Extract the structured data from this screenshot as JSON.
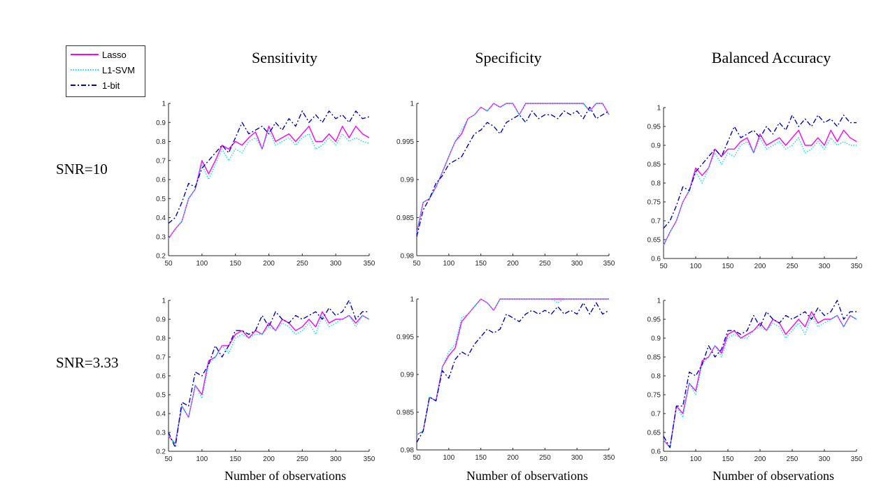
{
  "column_titles": [
    "Sensitivity",
    "Specificity",
    "Balanced Accuracy"
  ],
  "row_titles": [
    "SNR=10",
    "SNR=3.33"
  ],
  "xlabel": "Number of observations",
  "legend": {
    "items": [
      {
        "label": "Lasso",
        "color": "#ff00ff",
        "style": "solid"
      },
      {
        "label": "L1-SVM",
        "color": "#00e5ee",
        "style": "dotted"
      },
      {
        "label": "1-bit",
        "color": "#0000cc",
        "style": "dashdot"
      }
    ]
  },
  "chart_data": [
    {
      "type": "line",
      "row": "SNR=10",
      "column": "Sensitivity",
      "x": [
        50,
        60,
        70,
        80,
        90,
        100,
        110,
        120,
        130,
        140,
        150,
        160,
        170,
        180,
        190,
        200,
        210,
        220,
        230,
        240,
        250,
        260,
        270,
        280,
        290,
        300,
        310,
        320,
        330,
        340,
        350
      ],
      "xlim": [
        50,
        350
      ],
      "ylim": [
        0.2,
        1
      ],
      "xticks": [
        "50",
        "100",
        "150",
        "200",
        "250",
        "300",
        "350"
      ],
      "yticks": [
        "0.2",
        "0.3",
        "0.4",
        "0.5",
        "0.6",
        "0.7",
        "0.8",
        "0.9",
        "1"
      ],
      "series": [
        {
          "name": "Lasso",
          "values": [
            0.29,
            0.34,
            0.38,
            0.5,
            0.55,
            0.7,
            0.63,
            0.7,
            0.78,
            0.76,
            0.8,
            0.78,
            0.82,
            0.85,
            0.76,
            0.88,
            0.8,
            0.82,
            0.84,
            0.8,
            0.84,
            0.88,
            0.8,
            0.8,
            0.84,
            0.8,
            0.88,
            0.82,
            0.88,
            0.84,
            0.82
          ]
        },
        {
          "name": "L1-SVM",
          "values": [
            0.29,
            0.34,
            0.38,
            0.5,
            0.55,
            0.68,
            0.6,
            0.68,
            0.76,
            0.7,
            0.76,
            0.74,
            0.8,
            0.82,
            0.76,
            0.86,
            0.78,
            0.8,
            0.82,
            0.78,
            0.82,
            0.84,
            0.76,
            0.78,
            0.82,
            0.78,
            0.84,
            0.8,
            0.82,
            0.8,
            0.79
          ]
        },
        {
          "name": "1-bit",
          "values": [
            0.37,
            0.4,
            0.48,
            0.58,
            0.56,
            0.66,
            0.7,
            0.74,
            0.78,
            0.74,
            0.82,
            0.9,
            0.84,
            0.86,
            0.88,
            0.84,
            0.9,
            0.86,
            0.92,
            0.88,
            0.96,
            0.9,
            0.94,
            0.9,
            0.96,
            0.92,
            0.94,
            0.9,
            0.96,
            0.92,
            0.93
          ]
        }
      ]
    },
    {
      "type": "line",
      "row": "SNR=10",
      "column": "Specificity",
      "x": [
        50,
        60,
        70,
        80,
        90,
        100,
        110,
        120,
        130,
        140,
        150,
        160,
        170,
        180,
        190,
        200,
        210,
        220,
        230,
        240,
        250,
        260,
        270,
        280,
        290,
        300,
        310,
        320,
        330,
        340,
        350
      ],
      "xlim": [
        50,
        350
      ],
      "ylim": [
        0.98,
        1
      ],
      "xticks": [
        "50",
        "100",
        "150",
        "200",
        "250",
        "300",
        "350"
      ],
      "yticks": [
        "0.98",
        "0.985",
        "0.99",
        "0.995",
        "1"
      ],
      "series": [
        {
          "name": "Lasso",
          "values": [
            0.983,
            0.987,
            0.9875,
            0.989,
            0.991,
            0.993,
            0.995,
            0.996,
            0.998,
            0.9985,
            0.9995,
            0.999,
            1.0,
            0.9995,
            1.0,
            1.0,
            0.9985,
            1.0,
            1.0,
            1.0,
            1.0,
            1.0,
            1.0,
            1.0,
            1.0,
            1.0,
            1.0,
            0.999,
            1.0,
            1.0,
            0.9985
          ]
        },
        {
          "name": "L1-SVM",
          "values": [
            0.983,
            0.987,
            0.9875,
            0.989,
            0.991,
            0.993,
            0.995,
            0.9965,
            0.998,
            0.9985,
            0.9995,
            0.999,
            1.0,
            0.9995,
            1.0,
            1.0,
            0.9985,
            1.0,
            1.0,
            1.0,
            1.0,
            1.0,
            1.0,
            1.0,
            1.0,
            1.0,
            1.0,
            0.999,
            1.0,
            1.0,
            0.9985
          ]
        },
        {
          "name": "1-bit",
          "values": [
            0.9825,
            0.986,
            0.9875,
            0.9895,
            0.9905,
            0.992,
            0.9925,
            0.993,
            0.9945,
            0.996,
            0.9965,
            0.9975,
            0.997,
            0.996,
            0.9975,
            0.998,
            0.9985,
            0.9975,
            0.999,
            0.998,
            0.9985,
            0.9985,
            0.998,
            0.999,
            0.9985,
            0.999,
            0.998,
            0.9995,
            0.998,
            0.9985,
            0.999
          ]
        }
      ]
    },
    {
      "type": "line",
      "row": "SNR=10",
      "column": "Balanced Accuracy",
      "x": [
        50,
        60,
        70,
        80,
        90,
        100,
        110,
        120,
        130,
        140,
        150,
        160,
        170,
        180,
        190,
        200,
        210,
        220,
        230,
        240,
        250,
        260,
        270,
        280,
        290,
        300,
        310,
        320,
        330,
        340,
        350
      ],
      "xlim": [
        50,
        350
      ],
      "ylim": [
        0.6,
        1
      ],
      "xticks": [
        "50",
        "100",
        "150",
        "200",
        "250",
        "300",
        "350"
      ],
      "yticks": [
        "0.6",
        "0.65",
        "0.7",
        "0.75",
        "0.8",
        "0.85",
        "0.9",
        "0.95",
        "1"
      ],
      "series": [
        {
          "name": "Lasso",
          "values": [
            0.635,
            0.67,
            0.7,
            0.75,
            0.78,
            0.84,
            0.82,
            0.84,
            0.89,
            0.87,
            0.89,
            0.89,
            0.91,
            0.92,
            0.88,
            0.93,
            0.9,
            0.91,
            0.92,
            0.9,
            0.92,
            0.94,
            0.9,
            0.9,
            0.92,
            0.9,
            0.94,
            0.91,
            0.94,
            0.92,
            0.91
          ]
        },
        {
          "name": "L1-SVM",
          "values": [
            0.635,
            0.67,
            0.7,
            0.75,
            0.78,
            0.83,
            0.8,
            0.84,
            0.88,
            0.85,
            0.88,
            0.87,
            0.9,
            0.91,
            0.88,
            0.92,
            0.89,
            0.9,
            0.91,
            0.89,
            0.9,
            0.92,
            0.88,
            0.89,
            0.91,
            0.89,
            0.92,
            0.9,
            0.91,
            0.9,
            0.9
          ]
        },
        {
          "name": "1-bit",
          "values": [
            0.68,
            0.7,
            0.74,
            0.79,
            0.78,
            0.83,
            0.85,
            0.87,
            0.89,
            0.87,
            0.91,
            0.95,
            0.92,
            0.93,
            0.94,
            0.92,
            0.95,
            0.93,
            0.96,
            0.94,
            0.98,
            0.95,
            0.97,
            0.95,
            0.98,
            0.96,
            0.97,
            0.95,
            0.98,
            0.96,
            0.96
          ]
        }
      ]
    },
    {
      "type": "line",
      "row": "SNR=3.33",
      "column": "Sensitivity",
      "x": [
        50,
        60,
        70,
        80,
        90,
        100,
        110,
        120,
        130,
        140,
        150,
        160,
        170,
        180,
        190,
        200,
        210,
        220,
        230,
        240,
        250,
        260,
        270,
        280,
        290,
        300,
        310,
        320,
        330,
        340,
        350
      ],
      "xlim": [
        50,
        350
      ],
      "ylim": [
        0.2,
        1
      ],
      "xticks": [
        "50",
        "100",
        "150",
        "200",
        "250",
        "300",
        "350"
      ],
      "yticks": [
        "0.2",
        "0.3",
        "0.4",
        "0.5",
        "0.6",
        "0.7",
        "0.8",
        "0.9",
        "1"
      ],
      "series": [
        {
          "name": "Lasso",
          "values": [
            0.28,
            0.24,
            0.44,
            0.38,
            0.55,
            0.5,
            0.68,
            0.7,
            0.76,
            0.76,
            0.82,
            0.84,
            0.8,
            0.84,
            0.82,
            0.88,
            0.84,
            0.9,
            0.88,
            0.84,
            0.86,
            0.9,
            0.86,
            0.94,
            0.88,
            0.9,
            0.9,
            0.92,
            0.88,
            0.92,
            0.9
          ]
        },
        {
          "name": "L1-SVM",
          "values": [
            0.28,
            0.24,
            0.44,
            0.38,
            0.55,
            0.48,
            0.66,
            0.7,
            0.76,
            0.72,
            0.8,
            0.82,
            0.8,
            0.82,
            0.82,
            0.86,
            0.84,
            0.88,
            0.86,
            0.82,
            0.84,
            0.88,
            0.82,
            0.92,
            0.86,
            0.88,
            0.9,
            0.92,
            0.86,
            0.92,
            0.9
          ]
        },
        {
          "name": "1-bit",
          "values": [
            0.3,
            0.22,
            0.46,
            0.44,
            0.62,
            0.6,
            0.66,
            0.76,
            0.7,
            0.76,
            0.84,
            0.84,
            0.82,
            0.84,
            0.92,
            0.86,
            0.94,
            0.9,
            0.88,
            0.92,
            0.9,
            0.92,
            0.94,
            0.9,
            0.96,
            0.92,
            0.94,
            1.0,
            0.9,
            0.94,
            0.94
          ]
        }
      ]
    },
    {
      "type": "line",
      "row": "SNR=3.33",
      "column": "Specificity",
      "x": [
        50,
        60,
        70,
        80,
        90,
        100,
        110,
        120,
        130,
        140,
        150,
        160,
        170,
        180,
        190,
        200,
        210,
        220,
        230,
        240,
        250,
        260,
        270,
        280,
        290,
        300,
        310,
        320,
        330,
        340,
        350
      ],
      "xlim": [
        50,
        350
      ],
      "ylim": [
        0.98,
        1
      ],
      "xticks": [
        "50",
        "100",
        "150",
        "200",
        "250",
        "300",
        "350"
      ],
      "yticks": [
        "0.98",
        "0.985",
        "0.99",
        "0.995",
        "1"
      ],
      "series": [
        {
          "name": "Lasso",
          "values": [
            0.982,
            0.9825,
            0.987,
            0.9865,
            0.991,
            0.9925,
            0.9935,
            0.997,
            0.998,
            0.999,
            1.0,
            0.9995,
            0.9985,
            1.0,
            1.0,
            1.0,
            1.0,
            1.0,
            1.0,
            1.0,
            1.0,
            1.0,
            1.0,
            1.0,
            1.0,
            1.0,
            1.0,
            1.0,
            1.0,
            1.0,
            1.0
          ]
        },
        {
          "name": "L1-SVM",
          "values": [
            0.982,
            0.9825,
            0.987,
            0.9865,
            0.991,
            0.993,
            0.994,
            0.9975,
            0.998,
            0.999,
            1.0,
            0.9995,
            0.9985,
            1.0,
            1.0,
            1.0,
            1.0,
            1.0,
            1.0,
            1.0,
            1.0,
            1.0,
            0.9995,
            1.0,
            1.0,
            1.0,
            1.0,
            1.0,
            1.0,
            1.0,
            1.0
          ]
        },
        {
          "name": "1-bit",
          "values": [
            0.981,
            0.9825,
            0.987,
            0.9865,
            0.9905,
            0.9895,
            0.992,
            0.993,
            0.9925,
            0.994,
            0.995,
            0.996,
            0.9955,
            0.996,
            0.998,
            0.9975,
            0.997,
            0.998,
            0.9985,
            0.998,
            0.9985,
            0.998,
            0.999,
            0.998,
            0.9985,
            0.998,
            0.9995,
            0.998,
            0.9995,
            0.998,
            0.9985
          ]
        }
      ]
    },
    {
      "type": "line",
      "row": "SNR=3.33",
      "column": "Balanced Accuracy",
      "x": [
        50,
        60,
        70,
        80,
        90,
        100,
        110,
        120,
        130,
        140,
        150,
        160,
        170,
        180,
        190,
        200,
        210,
        220,
        230,
        240,
        250,
        260,
        270,
        280,
        290,
        300,
        310,
        320,
        330,
        340,
        350
      ],
      "xlim": [
        50,
        350
      ],
      "ylim": [
        0.6,
        1
      ],
      "xticks": [
        "50",
        "100",
        "150",
        "200",
        "250",
        "300",
        "350"
      ],
      "yticks": [
        "0.6",
        "0.65",
        "0.7",
        "0.75",
        "0.8",
        "0.85",
        "0.9",
        "0.95",
        "1"
      ],
      "series": [
        {
          "name": "Lasso",
          "values": [
            0.63,
            0.61,
            0.72,
            0.7,
            0.78,
            0.76,
            0.84,
            0.85,
            0.88,
            0.86,
            0.91,
            0.92,
            0.9,
            0.91,
            0.92,
            0.94,
            0.92,
            0.95,
            0.94,
            0.91,
            0.93,
            0.95,
            0.93,
            0.97,
            0.94,
            0.95,
            0.95,
            0.96,
            0.93,
            0.96,
            0.95
          ]
        },
        {
          "name": "L1-SVM",
          "values": [
            0.63,
            0.61,
            0.72,
            0.69,
            0.78,
            0.75,
            0.83,
            0.85,
            0.88,
            0.85,
            0.9,
            0.91,
            0.9,
            0.9,
            0.92,
            0.93,
            0.92,
            0.94,
            0.93,
            0.9,
            0.92,
            0.94,
            0.91,
            0.96,
            0.93,
            0.94,
            0.95,
            0.96,
            0.93,
            0.96,
            0.95
          ]
        },
        {
          "name": "1-bit",
          "values": [
            0.64,
            0.61,
            0.72,
            0.72,
            0.81,
            0.8,
            0.83,
            0.88,
            0.85,
            0.87,
            0.92,
            0.92,
            0.91,
            0.92,
            0.96,
            0.93,
            0.97,
            0.95,
            0.94,
            0.96,
            0.95,
            0.96,
            0.97,
            0.95,
            0.98,
            0.96,
            0.97,
            1.0,
            0.95,
            0.97,
            0.97
          ]
        }
      ]
    }
  ]
}
